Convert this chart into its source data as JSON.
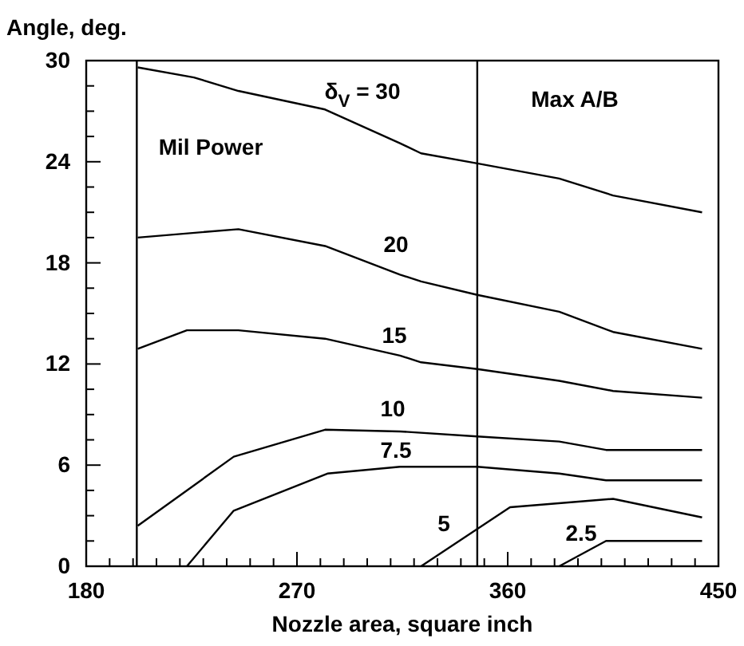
{
  "chart_data": {
    "type": "line",
    "xlabel": "Nozzle area, square inch",
    "ylabel": "Angle, deg.",
    "xlim": [
      180,
      450
    ],
    "ylim": [
      0,
      30
    ],
    "xticks": [
      180,
      {
        "value": 190,
        "label": null
      },
      {
        "value": 200,
        "label": null
      },
      {
        "value": 210,
        "label": null
      },
      {
        "value": 220,
        "label": null
      },
      {
        "value": 230,
        "label": null
      },
      {
        "value": 240,
        "label": null
      },
      {
        "value": 250,
        "label": null
      },
      {
        "value": 260,
        "label": null
      },
      270,
      {
        "value": 280,
        "label": null
      },
      {
        "value": 290,
        "label": null
      },
      {
        "value": 300,
        "label": null
      },
      {
        "value": 310,
        "label": null
      },
      {
        "value": 320,
        "label": null
      },
      {
        "value": 330,
        "label": null
      },
      {
        "value": 340,
        "label": null
      },
      {
        "value": 350,
        "label": null
      },
      360,
      {
        "value": 370,
        "label": null
      },
      {
        "value": 380,
        "label": null
      },
      {
        "value": 390,
        "label": null
      },
      {
        "value": 400,
        "label": null
      },
      {
        "value": 410,
        "label": null
      },
      {
        "value": 420,
        "label": null
      },
      {
        "value": 430,
        "label": null
      },
      {
        "value": 440,
        "label": null
      },
      450
    ],
    "yticks": [
      0,
      {
        "value": 1.5,
        "label": null
      },
      {
        "value": 3,
        "label": null
      },
      {
        "value": 4.5,
        "label": null
      },
      6,
      {
        "value": 7.5,
        "label": null
      },
      {
        "value": 9,
        "label": null
      },
      {
        "value": 10.5,
        "label": null
      },
      12,
      {
        "value": 13.5,
        "label": null
      },
      {
        "value": 15,
        "label": null
      },
      {
        "value": 16.5,
        "label": null
      },
      18,
      {
        "value": 19.5,
        "label": null
      },
      {
        "value": 21,
        "label": null
      },
      {
        "value": 22.5,
        "label": null
      },
      24,
      {
        "value": 25.5,
        "label": null
      },
      {
        "value": 27,
        "label": null
      },
      {
        "value": 28.5,
        "label": null
      },
      30
    ],
    "grid": false,
    "marker": "none",
    "line_style": "solid",
    "series": [
      {
        "name": "δ$_{V}$ = 30",
        "color": "#000000",
        "x": [
          202,
          226,
          245,
          282,
          314,
          323,
          347,
          382,
          405,
          443
        ],
        "values": [
          29.6,
          29,
          28.2,
          27.1,
          25.1,
          24.5,
          23.9,
          23,
          22,
          21
        ]
      },
      {
        "name": "20",
        "color": "#000000",
        "x": [
          202,
          245,
          282,
          314,
          323,
          347,
          382,
          405,
          443
        ],
        "values": [
          19.5,
          20,
          19,
          17.3,
          16.9,
          16.1,
          15.1,
          13.9,
          12.9
        ]
      },
      {
        "name": "15",
        "color": "#000000",
        "x": [
          202,
          223,
          245,
          282,
          314,
          323,
          347,
          382,
          405,
          443
        ],
        "values": [
          12.9,
          14,
          14,
          13.5,
          12.5,
          12.1,
          11.7,
          11,
          10.4,
          10
        ]
      },
      {
        "name": "10",
        "color": "#000000",
        "x": [
          202,
          243,
          282,
          314,
          347,
          382,
          402,
          443
        ],
        "values": [
          2.4,
          6.5,
          8.1,
          8,
          7.7,
          7.4,
          6.9,
          6.9
        ]
      },
      {
        "name": "7.5",
        "color": "#000000",
        "x": [
          223,
          243,
          283,
          314,
          347,
          382,
          402,
          443
        ],
        "values": [
          0,
          3.3,
          5.5,
          5.9,
          5.9,
          5.5,
          5.1,
          5.1
        ]
      },
      {
        "name": "5",
        "color": "#000000",
        "x": [
          323,
          361,
          405,
          443
        ],
        "values": [
          0,
          3.5,
          4,
          2.9
        ]
      },
      {
        "name": "2.5",
        "color": "#000000",
        "x": [
          382,
          402,
          443
        ],
        "values": [
          0,
          1.5,
          1.5
        ]
      }
    ],
    "ref_lines": [
      {
        "axis": "x",
        "value": 201.6,
        "color": "#000000"
      },
      {
        "axis": "x",
        "value": 347,
        "color": "#000000"
      }
    ],
    "annotations": [
      "Mil Power",
      "Max A/B"
    ]
  }
}
